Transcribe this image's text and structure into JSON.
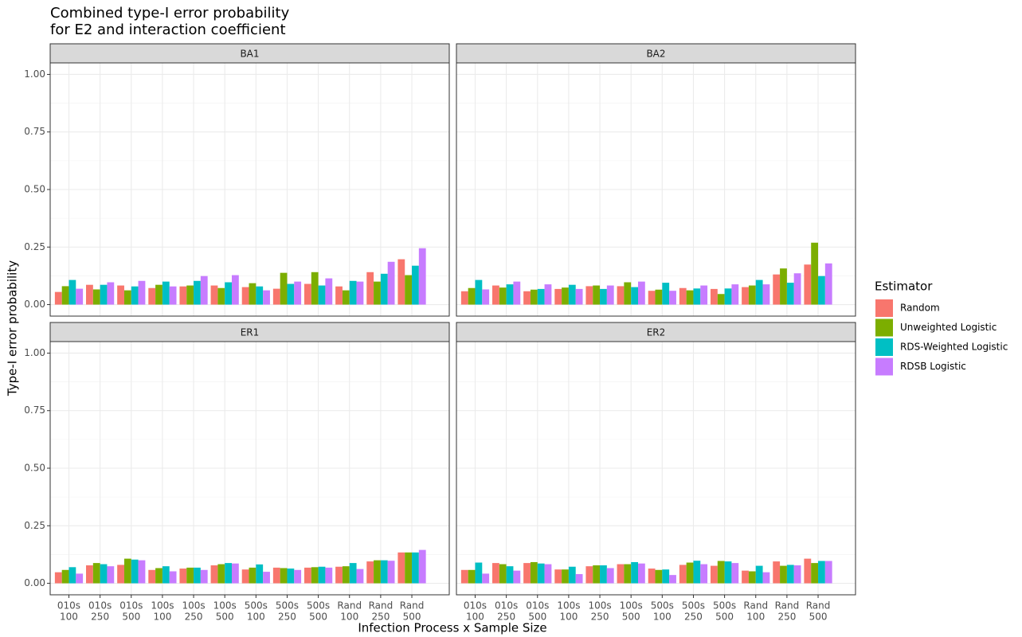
{
  "chart_data": {
    "type": "bar",
    "title": [
      "Combined type-I error probability",
      "for E2 and interaction coefficient"
    ],
    "x_label": "Infection Process x Sample Size",
    "y_label": "Type-I error probability",
    "legend_title": "Estimator",
    "legend_position": "right",
    "grid": true,
    "categories": [
      [
        "010s",
        "100"
      ],
      [
        "010s",
        "250"
      ],
      [
        "010s",
        "500"
      ],
      [
        "100s",
        "100"
      ],
      [
        "100s",
        "250"
      ],
      [
        "100s",
        "500"
      ],
      [
        "500s",
        "100"
      ],
      [
        "500s",
        "250"
      ],
      [
        "500s",
        "500"
      ],
      [
        "Rand",
        "100"
      ],
      [
        "Rand",
        "250"
      ],
      [
        "Rand",
        "500"
      ]
    ],
    "ylim": [
      -0.05,
      1.05
    ],
    "yticks": [
      {
        "value": 0,
        "label": "0.00"
      },
      0.25,
      {
        "value": 0.5,
        "label": "0.50"
      },
      0.75,
      {
        "value": 1,
        "label": "1.00"
      }
    ],
    "series": [
      {
        "name": "Random",
        "color": "#F8766D"
      },
      {
        "name": "Unweighted Logistic",
        "color": "#7CAE00"
      },
      {
        "name": "RDS-Weighted Logistic",
        "color": "#00BFC4"
      },
      {
        "name": "RDSB Logistic",
        "color": "#C77CFF"
      }
    ],
    "panels": [
      {
        "title": "BA1",
        "series": [
          {
            "values": [
              0.055,
              0.086,
              0.083,
              0.072,
              0.079,
              0.083,
              0.076,
              0.069,
              0.09,
              0.079,
              0.141,
              0.197
            ]
          },
          {
            "values": [
              0.08,
              0.066,
              0.062,
              0.086,
              0.083,
              0.072,
              0.093,
              0.138,
              0.141,
              0.062,
              0.1,
              0.128
            ]
          },
          {
            "values": [
              0.107,
              0.086,
              0.079,
              0.1,
              0.103,
              0.097,
              0.079,
              0.09,
              0.083,
              0.103,
              0.134,
              0.169
            ]
          },
          {
            "values": [
              0.069,
              0.097,
              0.103,
              0.079,
              0.124,
              0.128,
              0.062,
              0.1,
              0.114,
              0.1,
              0.186,
              0.245
            ]
          }
        ]
      },
      {
        "title": "BA2",
        "series": [
          {
            "values": [
              0.058,
              0.083,
              0.058,
              0.068,
              0.08,
              0.08,
              0.06,
              0.072,
              0.068,
              0.076,
              0.131,
              0.174
            ]
          },
          {
            "values": [
              0.072,
              0.074,
              0.065,
              0.074,
              0.083,
              0.097,
              0.065,
              0.062,
              0.046,
              0.083,
              0.157,
              0.269
            ]
          },
          {
            "values": [
              0.107,
              0.088,
              0.068,
              0.086,
              0.068,
              0.076,
              0.095,
              0.07,
              0.07,
              0.107,
              0.095,
              0.124
            ]
          },
          {
            "values": [
              0.066,
              0.1,
              0.088,
              0.068,
              0.083,
              0.1,
              0.06,
              0.083,
              0.088,
              0.088,
              0.136,
              0.179
            ]
          }
        ]
      },
      {
        "title": "ER1",
        "series": [
          {
            "values": [
              0.048,
              0.078,
              0.08,
              0.058,
              0.064,
              0.078,
              0.06,
              0.068,
              0.068,
              0.072,
              0.095,
              0.134
            ]
          },
          {
            "values": [
              0.058,
              0.088,
              0.107,
              0.066,
              0.068,
              0.083,
              0.068,
              0.066,
              0.07,
              0.074,
              0.1,
              0.134
            ]
          },
          {
            "values": [
              0.07,
              0.083,
              0.103,
              0.074,
              0.068,
              0.088,
              0.082,
              0.064,
              0.072,
              0.088,
              0.1,
              0.134
            ]
          },
          {
            "values": [
              0.042,
              0.074,
              0.1,
              0.052,
              0.058,
              0.086,
              0.05,
              0.058,
              0.068,
              0.062,
              0.098,
              0.145
            ]
          }
        ]
      },
      {
        "title": "ER2",
        "series": [
          {
            "values": [
              0.058,
              0.088,
              0.088,
              0.06,
              0.074,
              0.083,
              0.064,
              0.08,
              0.076,
              0.055,
              0.095,
              0.107
            ]
          },
          {
            "values": [
              0.058,
              0.083,
              0.092,
              0.06,
              0.078,
              0.083,
              0.058,
              0.09,
              0.097,
              0.052,
              0.076,
              0.088
            ]
          },
          {
            "values": [
              0.09,
              0.074,
              0.086,
              0.072,
              0.078,
              0.092,
              0.06,
              0.098,
              0.095,
              0.076,
              0.08,
              0.097
            ]
          },
          {
            "values": [
              0.042,
              0.055,
              0.083,
              0.04,
              0.066,
              0.086,
              0.036,
              0.083,
              0.088,
              0.048,
              0.078,
              0.097
            ]
          }
        ]
      }
    ]
  }
}
